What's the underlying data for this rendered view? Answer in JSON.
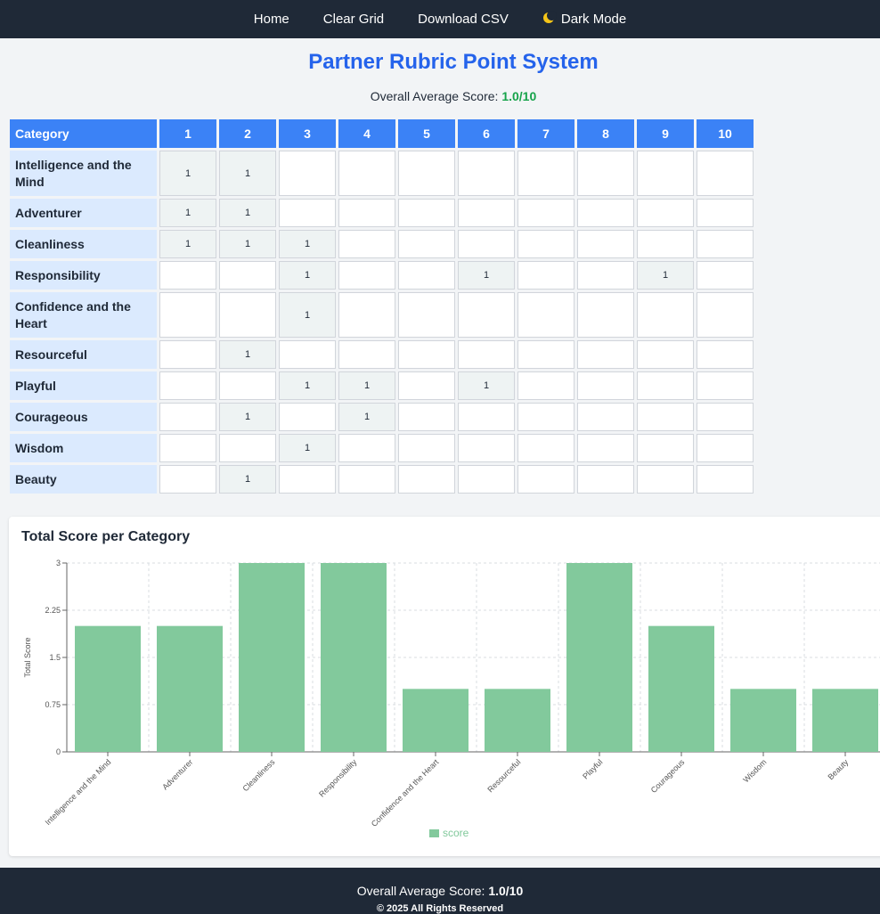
{
  "nav": {
    "home": "Home",
    "clear_grid": "Clear Grid",
    "download_csv": "Download CSV",
    "dark_mode": "Dark Mode"
  },
  "page": {
    "title": "Partner Rubric Point System",
    "avg_label": "Overall Average Score:",
    "avg_value": "1.0/10"
  },
  "grid": {
    "header_category": "Category",
    "columns": [
      "1",
      "2",
      "3",
      "4",
      "5",
      "6",
      "7",
      "8",
      "9",
      "10"
    ],
    "rows": [
      {
        "name": "Intelligence and the Mind",
        "cells": [
          "1",
          "1",
          "",
          "",
          "",
          "",
          "",
          "",
          "",
          ""
        ]
      },
      {
        "name": "Adventurer",
        "cells": [
          "1",
          "1",
          "",
          "",
          "",
          "",
          "",
          "",
          "",
          ""
        ]
      },
      {
        "name": "Cleanliness",
        "cells": [
          "1",
          "1",
          "1",
          "",
          "",
          "",
          "",
          "",
          "",
          ""
        ]
      },
      {
        "name": "Responsibility",
        "cells": [
          "",
          "",
          "1",
          "",
          "",
          "1",
          "",
          "",
          "1",
          ""
        ]
      },
      {
        "name": "Confidence and the Heart",
        "cells": [
          "",
          "",
          "1",
          "",
          "",
          "",
          "",
          "",
          "",
          ""
        ]
      },
      {
        "name": "Resourceful",
        "cells": [
          "",
          "1",
          "",
          "",
          "",
          "",
          "",
          "",
          "",
          ""
        ]
      },
      {
        "name": "Playful",
        "cells": [
          "",
          "",
          "1",
          "1",
          "",
          "1",
          "",
          "",
          "",
          ""
        ]
      },
      {
        "name": "Courageous",
        "cells": [
          "",
          "1",
          "",
          "1",
          "",
          "",
          "",
          "",
          "",
          ""
        ]
      },
      {
        "name": "Wisdom",
        "cells": [
          "",
          "",
          "1",
          "",
          "",
          "",
          "",
          "",
          "",
          ""
        ]
      },
      {
        "name": "Beauty",
        "cells": [
          "",
          "1",
          "",
          "",
          "",
          "",
          "",
          "",
          "",
          ""
        ]
      }
    ]
  },
  "chart_title": "Total Score per Category",
  "chart_data": {
    "type": "bar",
    "categories": [
      "Intelligence and the Mind",
      "Adventurer",
      "Cleanliness",
      "Responsibility",
      "Confidence and the Heart",
      "Resourceful",
      "Playful",
      "Courageous",
      "Wisdom",
      "Beauty"
    ],
    "series": [
      {
        "name": "score",
        "values": [
          2,
          2,
          3,
          3,
          1,
          1,
          3,
          2,
          1,
          1
        ],
        "color": "#82c99c"
      }
    ],
    "ylabel": "Total Score",
    "xlabel": "",
    "ylim": [
      0,
      3
    ],
    "yticks": [
      "0",
      "0.75",
      "1.5",
      "2.25",
      "3"
    ],
    "grid": true,
    "legend": "bottom"
  },
  "footer": {
    "avg_label": "Overall Average Score:",
    "avg_value": "1.0/10",
    "copyright": "© 2025 All Rights Reserved"
  },
  "colors": {
    "nav_bg": "#1f2937",
    "title": "#2563eb",
    "header": "#3b82f6",
    "category_bg": "#dbeafe",
    "score_value": "#16a34a",
    "bar": "#82c99c"
  }
}
